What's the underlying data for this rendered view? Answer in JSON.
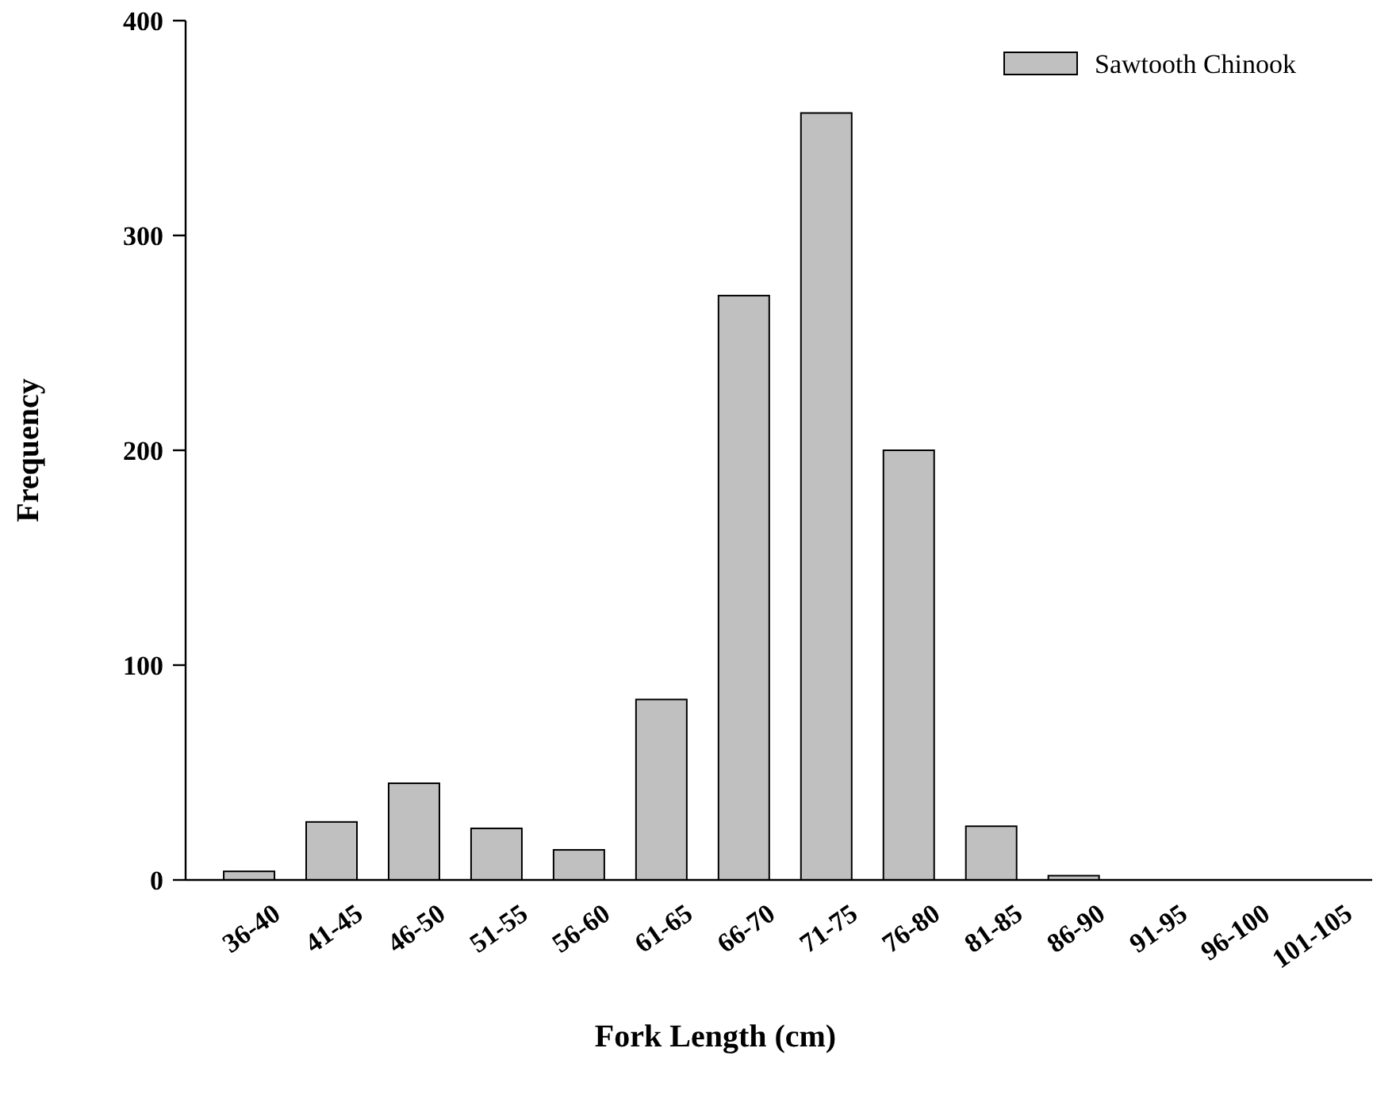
{
  "chart_data": {
    "type": "bar",
    "xlabel": "Fork Length (cm)",
    "ylabel": "Frequency",
    "categories": [
      "36-40",
      "41-45",
      "46-50",
      "51-55",
      "56-60",
      "61-65",
      "66-70",
      "71-75",
      "76-80",
      "81-85",
      "86-90",
      "91-95",
      "96-100",
      "101-105"
    ],
    "series": [
      {
        "name": "Sawtooth Chinook",
        "color": "#c0c0c0",
        "values": [
          4,
          27,
          45,
          24,
          14,
          84,
          272,
          357,
          200,
          25,
          2,
          0,
          0,
          0
        ]
      }
    ],
    "ylim": [
      0,
      400
    ],
    "yticks": [
      0,
      100,
      200,
      300,
      400
    ],
    "grid": false,
    "legend": "top right"
  }
}
